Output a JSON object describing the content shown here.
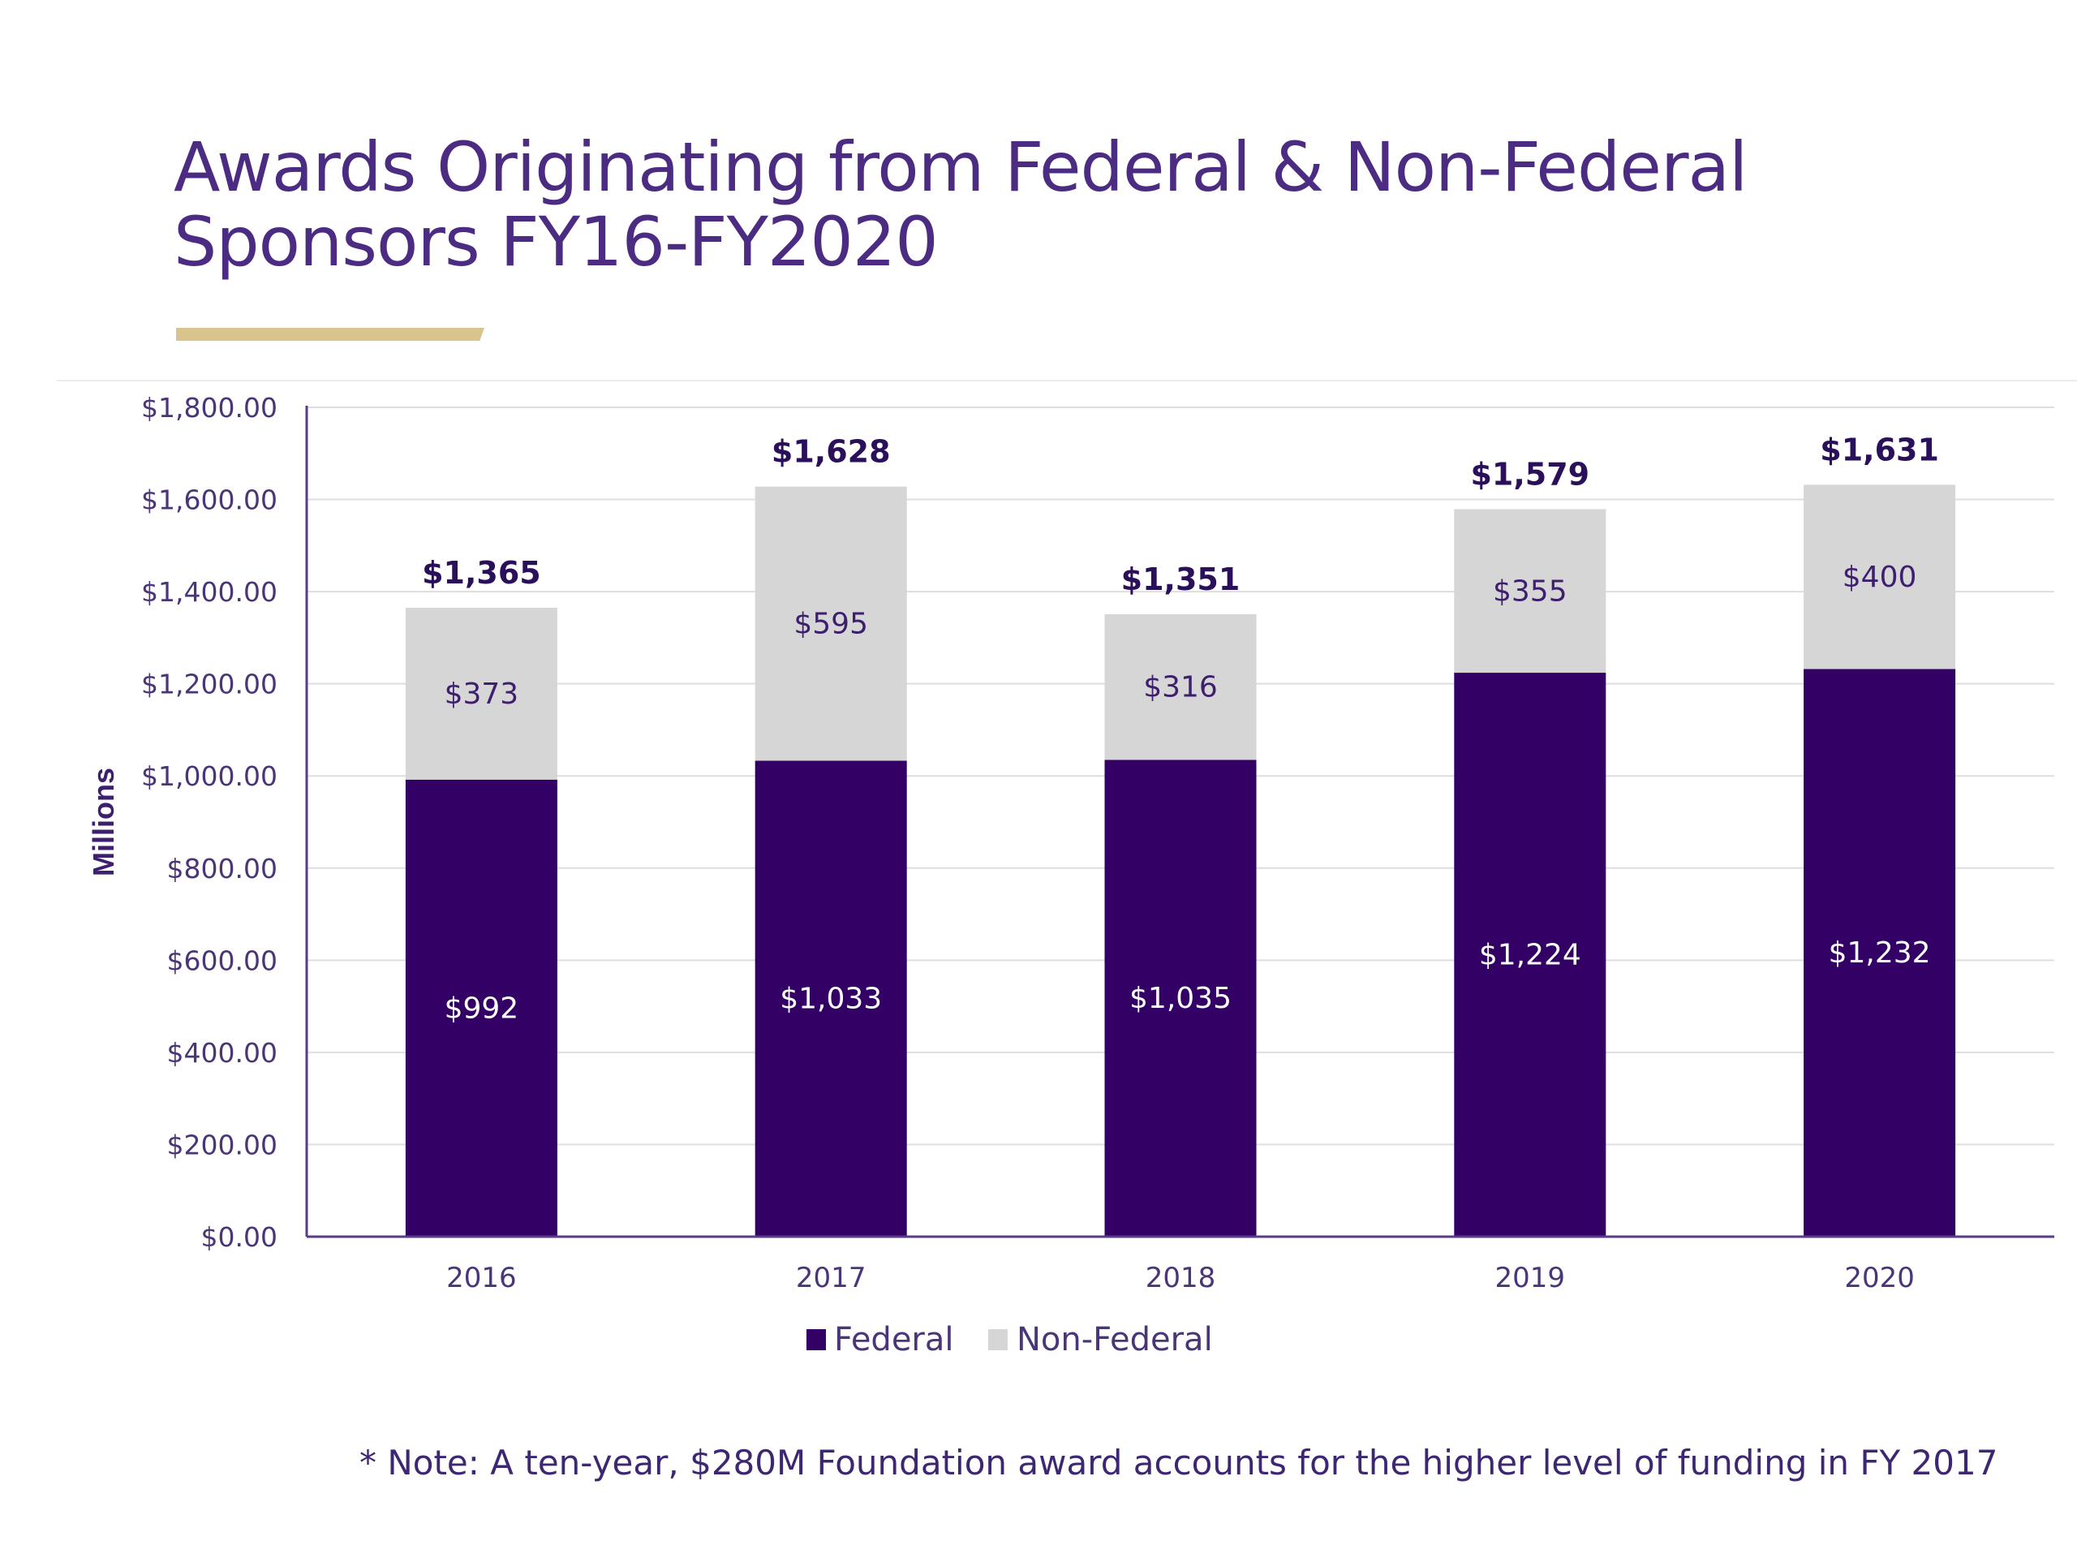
{
  "header": {
    "title_line1": "Awards Originating from Federal & Non-Federal",
    "title_line2": "Sponsors FY16-FY2020"
  },
  "note": "* Note: A ten-year, $280M Foundation award accounts for the higher level of funding in FY 2017",
  "colors": {
    "federal": "#330066",
    "non_federal": "#d6d6d6",
    "title": "#4b2c82",
    "accent": "#d8c48c",
    "axis": "#5a3b8a"
  },
  "chart_data": {
    "type": "bar",
    "stacked": true,
    "categories": [
      "2016",
      "2017",
      "2018",
      "2019",
      "2020"
    ],
    "series": [
      {
        "name": "Federal",
        "values": [
          992,
          1033,
          1035,
          1224,
          1232
        ],
        "labels": [
          "$992",
          "$1,033",
          "$1,035",
          "$1,224",
          "$1,232"
        ]
      },
      {
        "name": "Non-Federal",
        "values": [
          373,
          595,
          316,
          355,
          400
        ],
        "labels": [
          "$373",
          "$595",
          "$316",
          "$355",
          "$400"
        ]
      }
    ],
    "totals": [
      1365,
      1628,
      1351,
      1579,
      1631
    ],
    "total_labels": [
      "$1,365",
      "$1,628",
      "$1,351",
      "$1,579",
      "$1,631"
    ],
    "ylabel": "Millions",
    "ylim": [
      0,
      1800
    ],
    "y_ticks": [
      0,
      200,
      400,
      600,
      800,
      1000,
      1200,
      1400,
      1600,
      1800
    ],
    "y_tick_labels": [
      "$0.00",
      "$200.00",
      "$400.00",
      "$600.00",
      "$800.00",
      "$1,000.00",
      "$1,200.00",
      "$1,400.00",
      "$1,600.00",
      "$1,800.00"
    ],
    "grid": true,
    "legend": "bottom"
  }
}
